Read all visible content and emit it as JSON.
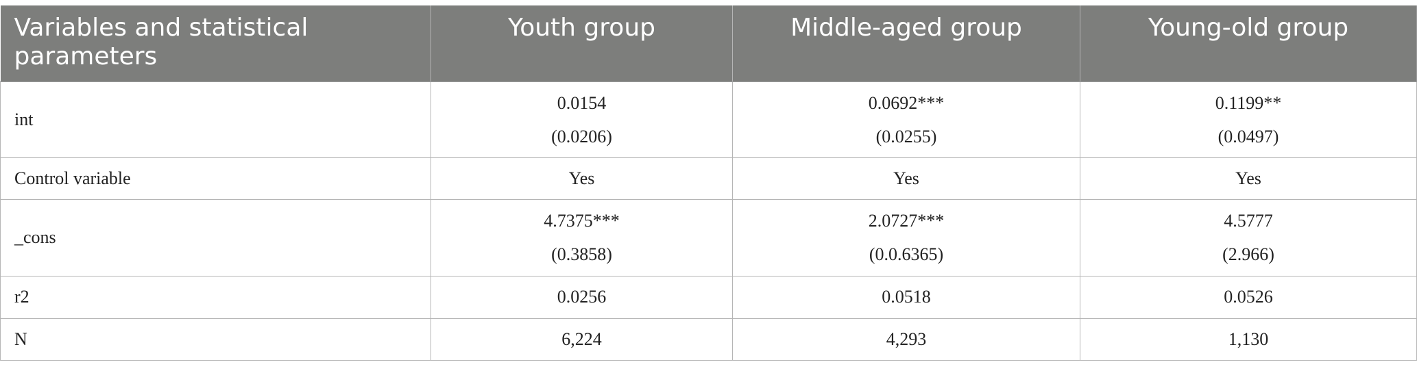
{
  "table": {
    "headers": [
      "Variables and statistical parameters",
      "Youth group",
      "Middle-aged group",
      "Young-old group"
    ],
    "rows": [
      {
        "label": "int",
        "cells": [
          {
            "value": "0.0154",
            "se": "(0.0206)"
          },
          {
            "value": "0.0692***",
            "se": "(0.0255)"
          },
          {
            "value": "0.1199**",
            "se": "(0.0497)"
          }
        ]
      },
      {
        "label": "Control variable",
        "cells": [
          {
            "value": "Yes"
          },
          {
            "value": "Yes"
          },
          {
            "value": "Yes"
          }
        ]
      },
      {
        "label": "_cons",
        "cells": [
          {
            "value": "4.7375***",
            "se": "(0.3858)"
          },
          {
            "value": "2.0727***",
            "se": "(0.0.6365)"
          },
          {
            "value": "4.5777",
            "se": "(2.966)"
          }
        ]
      },
      {
        "label": "r2",
        "cells": [
          {
            "value": "0.0256"
          },
          {
            "value": "0.0518"
          },
          {
            "value": "0.0526"
          }
        ]
      },
      {
        "label": "N",
        "cells": [
          {
            "value": "6,224"
          },
          {
            "value": "4,293"
          },
          {
            "value": "1,130"
          }
        ]
      }
    ]
  },
  "colors": {
    "header_bg": "#7d7e7c",
    "header_text": "#ffffff",
    "border": "#b5b5b5",
    "body_text": "#222222"
  }
}
